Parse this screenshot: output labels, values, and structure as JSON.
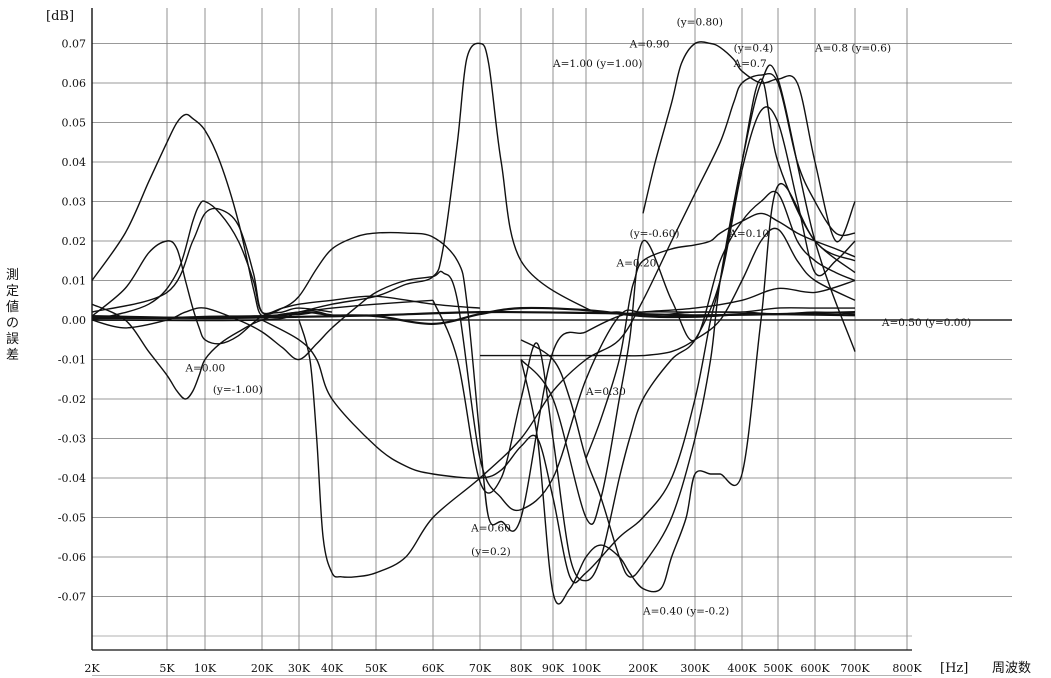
{
  "chart_data": {
    "type": "line",
    "y_unit": "[dB]",
    "x_unit": "[Hz]",
    "xlabel": "周波数",
    "ylabel": "測定値の誤差",
    "x_scale": "log",
    "ylim": [
      -0.08,
      0.072
    ],
    "x_ticks": [
      {
        "label": "2K",
        "value": 2000
      },
      {
        "label": "5K",
        "value": 5000
      },
      {
        "label": "10K",
        "value": 10000
      },
      {
        "label": "20K",
        "value": 20000
      },
      {
        "label": "30K",
        "value": 30000
      },
      {
        "label": "40K",
        "value": 40000
      },
      {
        "label": "50K",
        "value": 50000
      },
      {
        "label": "60K",
        "value": 60000
      },
      {
        "label": "70K",
        "value": 70000
      },
      {
        "label": "80K",
        "value": 80000
      },
      {
        "label": "90K",
        "value": 90000
      },
      {
        "label": "100K",
        "value": 100000
      },
      {
        "label": "200K",
        "value": 200000
      },
      {
        "label": "300K",
        "value": 300000
      },
      {
        "label": "400K",
        "value": 400000
      },
      {
        "label": "500K",
        "value": 500000
      },
      {
        "label": "600K",
        "value": 600000
      },
      {
        "label": "700K",
        "value": 700000
      },
      {
        "label": "800K",
        "value": 800000
      }
    ],
    "y_ticks": [
      {
        "label": "0.07",
        "value": 0.07
      },
      {
        "label": "0.06",
        "value": 0.06
      },
      {
        "label": "0.05",
        "value": 0.05
      },
      {
        "label": "0.04",
        "value": 0.04
      },
      {
        "label": "0.03",
        "value": 0.03
      },
      {
        "label": "0.02",
        "value": 0.02
      },
      {
        "label": "0.01",
        "value": 0.01
      },
      {
        "label": "0.00",
        "value": 0.0
      },
      {
        "label": "-0.01",
        "value": -0.01
      },
      {
        "label": "-0.02",
        "value": -0.02
      },
      {
        "label": "-0.03",
        "value": -0.03
      },
      {
        "label": "-0.04",
        "value": -0.04
      },
      {
        "label": "-0.05",
        "value": -0.05
      },
      {
        "label": "-0.06",
        "value": -0.06
      },
      {
        "label": "-0.07",
        "value": -0.07
      }
    ],
    "grid": true,
    "annotations": [
      {
        "text": "(y=0.80)",
        "x": 260000,
        "y": 0.0745
      },
      {
        "text": "A=0.90",
        "x": 170000,
        "y": 0.069
      },
      {
        "text": "(y=0.4)",
        "x": 380000,
        "y": 0.068
      },
      {
        "text": "A=0.8 (y=0.6)",
        "x": 600000,
        "y": 0.068
      },
      {
        "text": "A=1.00 (y=1.00)",
        "x": 90000,
        "y": 0.064
      },
      {
        "text": "A=0.7",
        "x": 380000,
        "y": 0.064
      },
      {
        "text": "(y=-0.60)",
        "x": 170000,
        "y": 0.021
      },
      {
        "text": "A=0.10",
        "x": 370000,
        "y": 0.021
      },
      {
        "text": "A=0.20",
        "x": 145000,
        "y": 0.0135
      },
      {
        "text": "A=0.50 (y=0.00)",
        "x": 750000,
        "y": -0.0015
      },
      {
        "text": "A=0.00",
        "x": 7000,
        "y": -0.013
      },
      {
        "text": "(y=-1.00)",
        "x": 11000,
        "y": -0.0185
      },
      {
        "text": "A=0.30",
        "x": 100000,
        "y": -0.019
      },
      {
        "text": "A=0.60",
        "x": 68000,
        "y": -0.0535
      },
      {
        "text": "(y=0.2)",
        "x": 68000,
        "y": -0.0595
      },
      {
        "text": "A=0.40 (y=-0.2)",
        "x": 200000,
        "y": -0.0745
      }
    ],
    "series": [
      {
        "x": [
          2000,
          3000,
          4000,
          5000,
          6000,
          7000,
          8000,
          10000,
          12000,
          15000,
          18000,
          20000,
          25000,
          30000,
          40000,
          50000,
          60000
        ],
        "y": [
          0.01,
          0.022,
          0.035,
          0.045,
          0.05,
          0.052,
          0.051,
          0.048,
          0.04,
          0.025,
          0.008,
          0.001,
          0.0015,
          0.002,
          0.003,
          0.004,
          0.005
        ]
      },
      {
        "x": [
          2000,
          3000,
          4000,
          5000,
          6000,
          7000,
          8000,
          9000,
          10000,
          12000,
          15000,
          20000,
          25000,
          30000,
          40000
        ],
        "y": [
          0.001,
          0.008,
          0.017,
          0.02,
          0.018,
          0.01,
          0.003,
          -0.002,
          -0.005,
          -0.006,
          -0.004,
          0.001,
          0.002,
          0.003,
          0.002
        ]
      },
      {
        "x": [
          2000,
          3000,
          4000,
          5000,
          6000,
          7000,
          8000,
          9000,
          10000,
          12000,
          15000,
          20000,
          30000,
          40000
        ],
        "y": [
          0.004,
          0.0,
          -0.008,
          -0.014,
          -0.018,
          -0.02,
          -0.018,
          -0.014,
          -0.01,
          -0.006,
          -0.003,
          0.0,
          0.002,
          0.001
        ]
      },
      {
        "x": [
          2000,
          4000,
          6000,
          8000,
          9000,
          10000,
          12000,
          15000,
          18000,
          20000,
          25000,
          30000,
          40000,
          50000,
          60000,
          70000
        ],
        "y": [
          0.0,
          0.004,
          0.012,
          0.025,
          0.029,
          0.03,
          0.027,
          0.02,
          0.01,
          0.002,
          0.003,
          0.004,
          0.005,
          0.006,
          0.004,
          0.003
        ]
      },
      {
        "x": [
          2000,
          5000,
          8000,
          10000,
          12000,
          15000,
          18000,
          20000,
          25000,
          30000,
          35000,
          40000,
          45000,
          50000,
          55000,
          60000,
          65000,
          67000,
          70000,
          72000,
          75000,
          80000,
          90000,
          100000,
          150000,
          200000,
          300000,
          400000,
          500000,
          600000,
          700000
        ],
        "y": [
          0.002,
          0.007,
          0.02,
          0.027,
          0.028,
          0.024,
          0.012,
          0.002,
          0.003,
          0.006,
          0.013,
          0.018,
          0.021,
          0.022,
          0.022,
          0.021,
          0.015,
          0.005,
          -0.03,
          -0.05,
          -0.051,
          -0.05,
          -0.008,
          -0.003,
          0.001,
          0.002,
          0.003,
          0.005,
          0.008,
          0.007,
          0.01
        ]
      },
      {
        "x": [
          2000,
          3000,
          5000,
          7000,
          10000,
          15000,
          20000,
          25000,
          30000,
          35000,
          40000,
          45000,
          50000,
          55000,
          60000,
          62000,
          65000,
          70000,
          75000,
          80000,
          90000,
          100000,
          150000,
          200000,
          300000,
          400000,
          500000,
          600000,
          700000
        ],
        "y": [
          0.0,
          -0.002,
          0.0,
          0.002,
          0.003,
          0.0,
          -0.003,
          -0.007,
          -0.01,
          -0.006,
          -0.002,
          0.003,
          0.007,
          0.01,
          0.011,
          0.012,
          0.005,
          -0.035,
          -0.045,
          -0.048,
          -0.04,
          -0.015,
          0.001,
          0.002,
          0.002,
          0.002,
          0.0015,
          0.002,
          0.0015
        ]
      },
      {
        "x": [
          2000,
          10000,
          30000,
          50000,
          70000,
          100000,
          200000,
          300000,
          500000,
          700000
        ],
        "y": [
          0.001,
          0.0005,
          0.0008,
          0.0012,
          0.002,
          0.0018,
          0.0015,
          0.0012,
          0.0015,
          0.002
        ]
      },
      {
        "x": [
          2000,
          20000,
          30000,
          40000,
          50000,
          55000,
          60000,
          62000,
          65000,
          67000,
          70000,
          72000,
          75000,
          80000,
          100000,
          150000,
          200000,
          300000,
          400000,
          500000,
          600000,
          700000
        ],
        "y": [
          0.0,
          0.0,
          0.002,
          0.004,
          0.006,
          0.009,
          0.011,
          0.018,
          0.045,
          0.066,
          0.07,
          0.065,
          0.04,
          0.015,
          0.003,
          0.002,
          0.001,
          0.002,
          0.002,
          0.003,
          0.003,
          0.003
        ]
      },
      {
        "x": [
          2000,
          5000,
          10000,
          20000,
          30000,
          35000,
          40000,
          50000,
          60000,
          70000,
          80000,
          100000,
          200000,
          300000,
          400000,
          500000,
          700000
        ],
        "y": [
          0.0005,
          0.0005,
          0.0008,
          0.001,
          0.0015,
          0.002,
          0.0012,
          0.001,
          -0.001,
          0.0015,
          0.003,
          0.0025,
          0.001,
          0.0008,
          0.0015,
          0.0015,
          0.0012
        ]
      },
      {
        "x": [
          30000,
          33000,
          35000,
          37000,
          40000,
          42000,
          45000,
          50000,
          55000,
          60000,
          70000,
          80000,
          90000,
          100000,
          150000,
          200000,
          250000,
          300000,
          350000,
          380000,
          400000,
          450000,
          500000,
          550000,
          600000,
          650000,
          700000
        ],
        "y": [
          0.0,
          -0.01,
          -0.03,
          -0.055,
          -0.064,
          -0.065,
          -0.065,
          -0.064,
          -0.06,
          -0.05,
          -0.04,
          -0.03,
          -0.018,
          -0.01,
          -0.005,
          0.005,
          0.02,
          0.032,
          0.045,
          0.055,
          0.06,
          0.062,
          0.06,
          0.04,
          0.03,
          0.022,
          0.022
        ]
      },
      {
        "x": [
          20000,
          30000,
          35000,
          40000,
          50000,
          55000,
          60000,
          70000,
          75000,
          80000,
          85000,
          90000,
          95000,
          100000,
          150000,
          200000,
          250000,
          300000,
          330000,
          350000,
          400000,
          450000,
          500000,
          600000,
          700000
        ],
        "y": [
          0.0,
          -0.005,
          -0.01,
          -0.02,
          -0.032,
          -0.037,
          -0.039,
          -0.04,
          -0.038,
          -0.032,
          -0.03,
          -0.045,
          -0.065,
          -0.064,
          -0.055,
          -0.05,
          -0.04,
          -0.02,
          0.0,
          0.01,
          0.04,
          0.061,
          0.04,
          0.02,
          0.015
        ]
      },
      {
        "x": [
          60000,
          65000,
          70000,
          75000,
          80000,
          85000,
          90000,
          95000,
          100000,
          120000,
          150000,
          170000,
          200000,
          250000,
          300000,
          350000,
          400000,
          450000,
          500000,
          550000,
          600000,
          650000,
          700000
        ],
        "y": [
          0.005,
          -0.01,
          -0.041,
          -0.04,
          -0.02,
          -0.006,
          -0.03,
          -0.06,
          -0.066,
          -0.06,
          -0.04,
          -0.03,
          -0.02,
          -0.01,
          -0.005,
          0.01,
          0.038,
          0.053,
          0.05,
          0.03,
          0.012,
          0.015,
          0.02
        ]
      },
      {
        "x": [
          80000,
          85000,
          90000,
          95000,
          100000,
          120000,
          150000,
          170000,
          200000,
          230000,
          250000,
          280000,
          300000,
          330000,
          350000,
          400000,
          450000,
          500000,
          600000,
          700000
        ],
        "y": [
          -0.01,
          -0.03,
          -0.069,
          -0.068,
          -0.06,
          -0.057,
          -0.06,
          -0.064,
          -0.068,
          -0.068,
          -0.06,
          -0.05,
          -0.039,
          -0.039,
          -0.039,
          -0.039,
          0.0,
          0.034,
          0.02,
          0.012
        ]
      },
      {
        "x": [
          80000,
          90000,
          100000,
          120000,
          150000,
          170000,
          200000,
          250000,
          300000,
          350000,
          400000,
          450000,
          500000,
          550000,
          600000,
          650000,
          700000
        ],
        "y": [
          -0.01,
          -0.02,
          -0.05,
          -0.045,
          -0.02,
          -0.005,
          0.02,
          0.005,
          -0.005,
          0.015,
          0.025,
          0.03,
          0.032,
          0.02,
          0.015,
          0.012,
          0.01
        ]
      },
      {
        "x": [
          100000,
          120000,
          150000,
          170000,
          180000,
          200000,
          250000,
          300000,
          330000,
          350000,
          400000,
          450000,
          500000,
          550000,
          600000,
          650000,
          700000
        ],
        "y": [
          -0.035,
          -0.025,
          -0.01,
          0.005,
          0.01,
          0.015,
          0.018,
          0.019,
          0.02,
          0.022,
          0.025,
          0.027,
          0.025,
          0.022,
          0.02,
          0.018,
          0.016
        ]
      },
      {
        "x": [
          70000,
          100000,
          150000,
          200000,
          250000,
          300000,
          350000,
          400000,
          450000,
          500000,
          550000,
          600000,
          700000
        ],
        "y": [
          -0.009,
          -0.009,
          -0.009,
          -0.009,
          -0.008,
          -0.005,
          0.0,
          0.01,
          0.02,
          0.023,
          0.015,
          0.01,
          0.005
        ]
      },
      {
        "x": [
          80000,
          90000,
          95000,
          100000,
          120000,
          150000,
          170000,
          200000,
          250000,
          300000,
          330000,
          350000,
          400000,
          450000,
          500000,
          600000,
          700000
        ],
        "y": [
          -0.005,
          -0.01,
          -0.02,
          -0.035,
          -0.045,
          -0.06,
          -0.065,
          -0.062,
          -0.05,
          -0.03,
          -0.01,
          0.01,
          0.04,
          0.06,
          0.061,
          0.02,
          -0.008
        ]
      },
      {
        "x": [
          200000,
          220000,
          250000,
          270000,
          300000,
          330000,
          350000,
          380000,
          400000,
          450000,
          500000,
          550000,
          600000,
          650000,
          700000
        ],
        "y": [
          0.027,
          0.04,
          0.055,
          0.065,
          0.07,
          0.07,
          0.069,
          0.066,
          0.063,
          0.06,
          0.061,
          0.06,
          0.04,
          0.02,
          0.03
        ]
      }
    ]
  }
}
